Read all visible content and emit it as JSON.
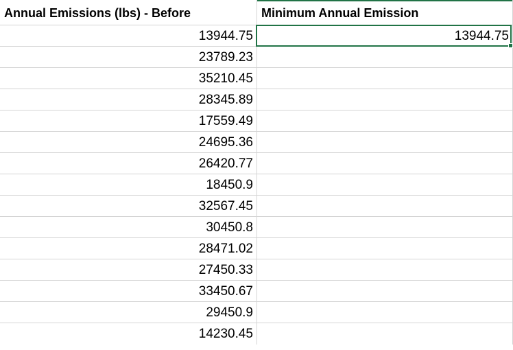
{
  "column_a": {
    "header": "Annual Emissions (lbs) - Before",
    "values": [
      "13944.75",
      "23789.23",
      "35210.45",
      "28345.89",
      "17559.49",
      "24695.36",
      "26420.77",
      "18450.9",
      "32567.45",
      "30450.8",
      "28471.02",
      "27450.33",
      "33450.67",
      "29450.9",
      "14230.45"
    ]
  },
  "column_b": {
    "header": "Minimum Annual Emission",
    "values": [
      "13944.75"
    ]
  },
  "colors": {
    "selection": "#217346",
    "gridline": "#d4d4d4"
  }
}
